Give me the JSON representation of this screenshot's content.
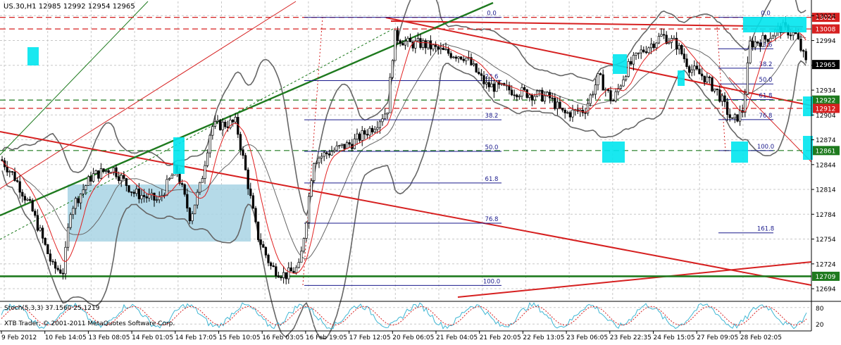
{
  "header": {
    "symbol_info": "US.30,H1  12985 12992 12954 12965"
  },
  "sub_window": {
    "label": "Stoch(5,3,3) 37.1560 25.1219"
  },
  "watermark": "XTB Trader, © 2001-2011 MetaQuotes Software Corp.",
  "chart_data": {
    "type": "candlestick",
    "timeframe": "H1",
    "price_axis": {
      "range": [
        12680,
        13030
      ],
      "ticks": [
        13024,
        12994,
        12964,
        12934,
        12904,
        12874,
        12844,
        12814,
        12784,
        12754,
        12724,
        12694
      ]
    },
    "time_labels": [
      "9 Feb 2012",
      "10 Feb 14:05",
      "13 Feb 08:05",
      "14 Feb 01:05",
      "14 Feb 17:05",
      "15 Feb 10:05",
      "16 Feb 03:05",
      "16 Feb 19:05",
      "17 Feb 12:05",
      "20 Feb 06:05",
      "21 Feb 04:05",
      "21 Feb 20:05",
      "22 Feb 13:05",
      "23 Feb 06:05",
      "23 Feb 22:35",
      "24 Feb 15:05",
      "27 Feb 09:05",
      "28 Feb 02:05"
    ],
    "current_price": 12965,
    "levels": [
      {
        "price": 13022,
        "label": "13022",
        "color": "#d62020"
      },
      {
        "price": 13008,
        "label": "13008",
        "color": "#d62020"
      },
      {
        "price": 12922,
        "label": "12922",
        "color": "#1e7a1e"
      },
      {
        "price": 12912,
        "label": "12912",
        "color": "#d62020"
      },
      {
        "price": 12861,
        "label": "12861",
        "color": "#1e7a1e"
      },
      {
        "price": 12709,
        "label": "12709",
        "color": "#1e7a1e"
      }
    ],
    "fib_1": {
      "labels": [
        "0.0",
        "23.6",
        "38.2",
        "50.0",
        "61.8",
        "76.8",
        "100.0"
      ],
      "high": 13022,
      "low": 12698
    },
    "fib_2": {
      "labels": [
        "0.0",
        "23.6",
        "38.2",
        "50.0",
        "61.8",
        "76.8",
        "100.0",
        "161.8"
      ],
      "high": 13022,
      "low": 12861
    },
    "stoch_axis": {
      "ticks": [
        "80",
        "20"
      ]
    },
    "colors": {
      "bull": "#ffffff",
      "bear": "#000000",
      "support": "#1e7a1e",
      "resistance": "#d62020",
      "highlight": "#00e5ee",
      "zone": "#a8d4e4",
      "bands": "#666666",
      "fib": "#1a1a8c"
    }
  }
}
